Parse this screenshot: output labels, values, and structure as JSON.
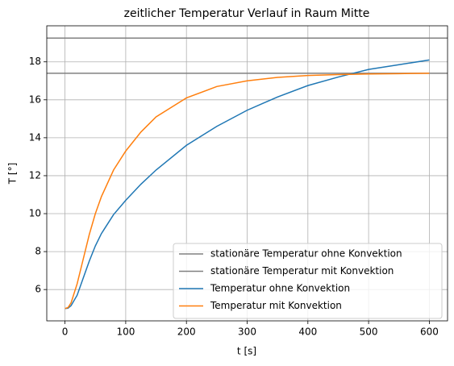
{
  "chart_data": {
    "type": "line",
    "title": "zeitlicher Temperatur Verlauf in Raum Mitte",
    "xlabel": "t [s]",
    "ylabel": "T [°]",
    "x": [
      0,
      5,
      10,
      20,
      30,
      40,
      50,
      60,
      80,
      100,
      125,
      150,
      200,
      250,
      300,
      350,
      400,
      450,
      500,
      550,
      600
    ],
    "hlines": [
      {
        "name": "stationäre Temperatur ohne Konvektion",
        "color": "#808080",
        "value": 19.25
      },
      {
        "name": "stationäre Temperatur mit Konvektion",
        "color": "#808080",
        "value": 17.4
      }
    ],
    "series": [
      {
        "name": "Temperatur ohne Konvektion",
        "color": "#1f77b4",
        "values": [
          5,
          5.02,
          5.15,
          5.7,
          6.6,
          7.5,
          8.3,
          8.95,
          9.95,
          10.7,
          11.55,
          12.3,
          13.6,
          14.6,
          15.45,
          16.15,
          16.75,
          17.2,
          17.6,
          17.85,
          18.1
        ]
      },
      {
        "name": "Temperatur mit Konvektion",
        "color": "#ff7f0e",
        "values": [
          5,
          5.05,
          5.3,
          6.3,
          7.6,
          8.9,
          10.0,
          10.9,
          12.3,
          13.3,
          14.3,
          15.1,
          16.1,
          16.7,
          17.0,
          17.18,
          17.28,
          17.33,
          17.36,
          17.38,
          17.4
        ]
      }
    ],
    "xlim": [
      -30,
      630
    ],
    "ylim": [
      4.35,
      19.9
    ],
    "xticks": [
      0,
      100,
      200,
      300,
      400,
      500,
      600
    ],
    "yticks": [
      6,
      8,
      10,
      12,
      14,
      16,
      18
    ],
    "grid": true,
    "legend": "lower right"
  }
}
